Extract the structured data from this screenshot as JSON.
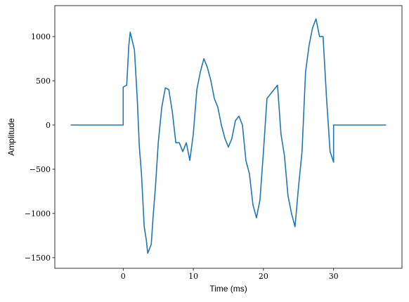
{
  "chart_data": {
    "type": "line",
    "xlabel": "Time (ms)",
    "ylabel": "Amplitude",
    "color": "#1f77b4",
    "x": [
      -7.5,
      0,
      0,
      0.5,
      0.8,
      1.0,
      1.3,
      1.6,
      2.0,
      2.3,
      2.6,
      3.0,
      3.3,
      3.5,
      4.0,
      4.3,
      4.6,
      5.0,
      5.5,
      6.0,
      6.5,
      7.0,
      7.5,
      8.0,
      8.5,
      9.0,
      9.5,
      10.0,
      10.5,
      11.0,
      11.5,
      12.0,
      12.5,
      13.0,
      13.5,
      14.0,
      14.5,
      15.0,
      15.5,
      16.0,
      16.5,
      17.0,
      17.5,
      18.0,
      18.5,
      19.0,
      19.5,
      20.0,
      20.5,
      21.0,
      21.5,
      22.0,
      22.5,
      23.0,
      23.5,
      24.0,
      24.5,
      25.0,
      25.5,
      26.0,
      26.5,
      27.0,
      27.5,
      28.0,
      28.5,
      29.0,
      29.5,
      30.0,
      30.0,
      37.5
    ],
    "values": [
      0,
      0,
      430,
      450,
      900,
      1050,
      950,
      850,
      300,
      -250,
      -550,
      -1150,
      -1300,
      -1450,
      -1350,
      -1000,
      -700,
      -200,
      200,
      420,
      400,
      150,
      -200,
      -200,
      -300,
      -200,
      -400,
      -100,
      400,
      600,
      750,
      650,
      500,
      300,
      200,
      0,
      -150,
      -250,
      -150,
      50,
      100,
      0,
      -400,
      -550,
      -900,
      -1050,
      -850,
      -300,
      300,
      350,
      400,
      450,
      -100,
      -350,
      -800,
      -1000,
      -1150,
      -700,
      -300,
      600,
      900,
      1100,
      1200,
      1000,
      1000,
      300,
      -300,
      -420,
      0,
      0
    ],
    "xlim": [
      -9.75,
      39.75
    ],
    "ylim": [
      -1620,
      1350
    ],
    "xticks": [
      0,
      10,
      20,
      30
    ],
    "yticks": [
      {
        "value": -1500,
        "label": "−1500"
      },
      {
        "value": -1000,
        "label": "−1000"
      },
      {
        "value": -500,
        "label": "−500"
      },
      0,
      500,
      1000
    ]
  }
}
